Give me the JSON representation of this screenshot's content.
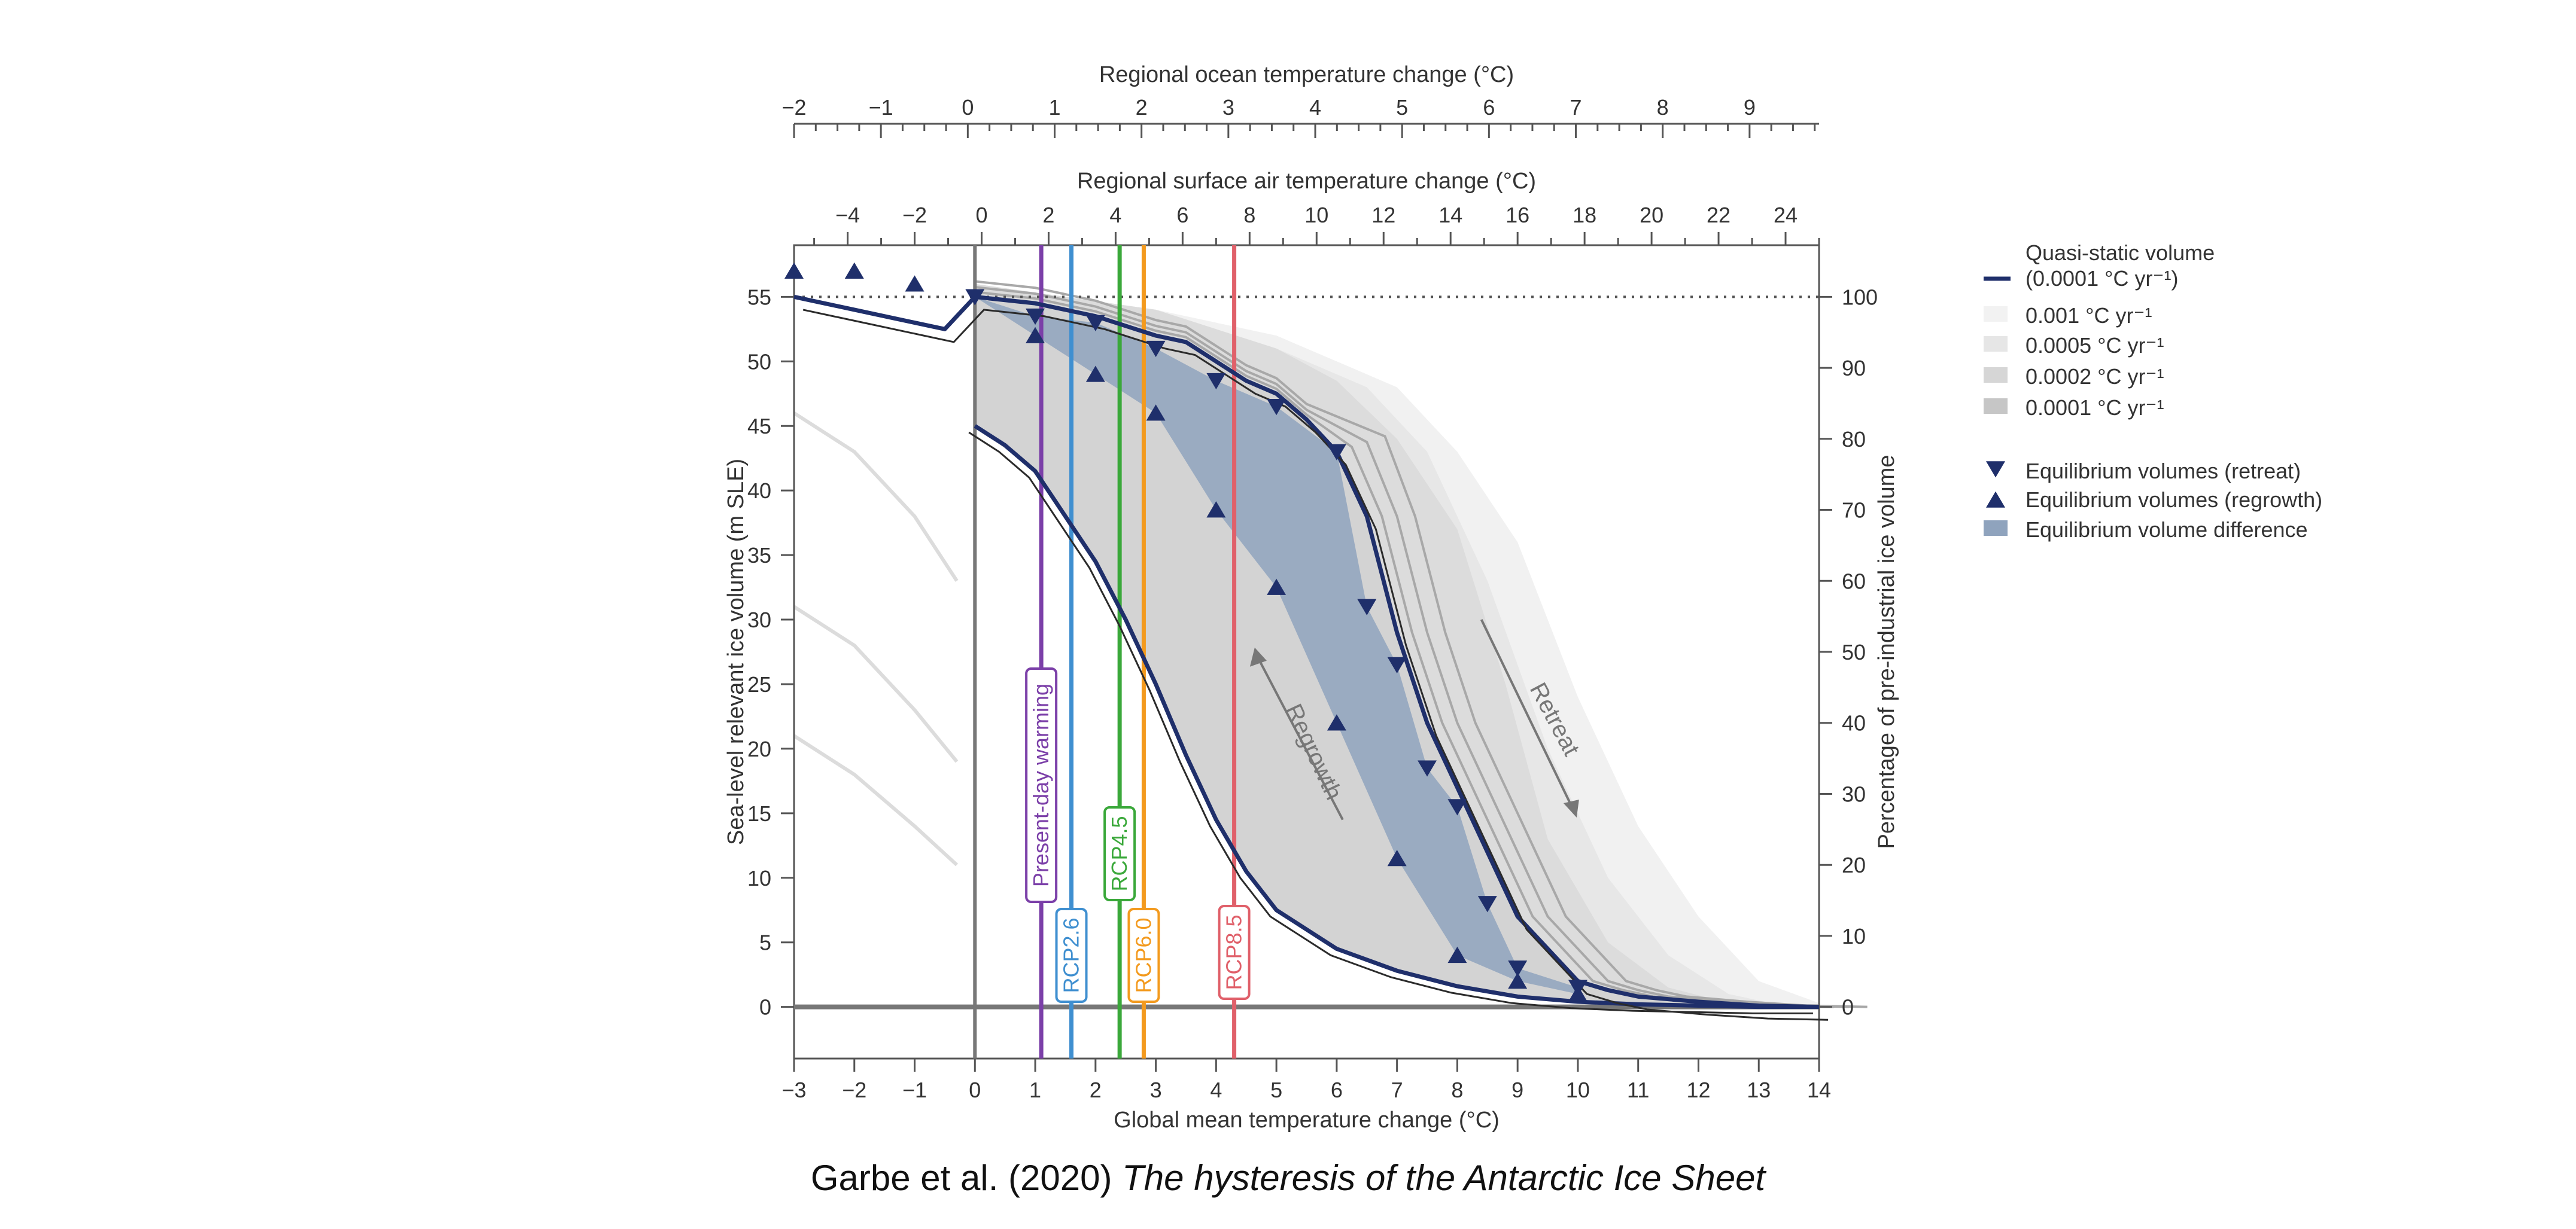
{
  "chart_data": {
    "type": "line",
    "axes": {
      "x_bottom": {
        "label": "Global mean temperature change (°C)",
        "range": [
          -3,
          14
        ],
        "ticks": [
          -3,
          -2,
          -1,
          0,
          1,
          2,
          3,
          4,
          5,
          6,
          7,
          8,
          9,
          10,
          11,
          12,
          13,
          14
        ]
      },
      "x_top_air": {
        "label": "Regional surface air temperature change (°C)",
        "range": [
          -5.6,
          25.0
        ],
        "ticks": [
          -4,
          -2,
          0,
          2,
          4,
          6,
          8,
          10,
          12,
          14,
          16,
          18,
          20,
          22,
          24
        ]
      },
      "x_top_ocean": {
        "label": "Regional ocean temperature change (°C)",
        "range": [
          -2.0,
          9.8
        ],
        "ticks": [
          -2,
          -1,
          0,
          1,
          2,
          3,
          4,
          5,
          6,
          7,
          8,
          9
        ]
      },
      "y_left": {
        "label": "Sea-level relevant ice volume (m SLE)",
        "range": [
          -4,
          59
        ],
        "ticks": [
          0,
          5,
          10,
          15,
          20,
          25,
          30,
          35,
          40,
          45,
          50,
          55
        ]
      },
      "y_right": {
        "label": "Percentage of pre-industrial ice volume",
        "ticks": [
          0,
          10,
          20,
          30,
          40,
          50,
          60,
          70,
          80,
          90,
          100
        ]
      }
    },
    "scenario_lines": [
      {
        "name": "Present-day warming",
        "x": 1.1,
        "color": "#7b3fa8"
      },
      {
        "name": "RCP2.6",
        "x": 1.6,
        "color": "#3f8fd0"
      },
      {
        "name": "RCP4.5",
        "x": 2.4,
        "color": "#3aa83a"
      },
      {
        "name": "RCP6.0",
        "x": 2.8,
        "color": "#f39a1e"
      },
      {
        "name": "RCP8.5",
        "x": 4.3,
        "color": "#e0606a"
      }
    ],
    "annotations": {
      "regrowth": "Regrowth",
      "retreat": "Retreat"
    },
    "series": [
      {
        "name": "Quasi-static volume retreat (0.0001 °C yr⁻¹)",
        "color": "#1f2f6b",
        "x": [
          -3,
          -2,
          -1,
          -0.5,
          0,
          1,
          2,
          3,
          3.5,
          4,
          4.5,
          5,
          5.5,
          6,
          6.5,
          7,
          7.5,
          8,
          8.5,
          9,
          9.5,
          10,
          10.5,
          11,
          12,
          13,
          14
        ],
        "y": [
          55,
          54,
          53,
          52.5,
          55,
          54.5,
          53.5,
          52,
          51.5,
          50,
          48.5,
          47.5,
          45.5,
          43,
          38,
          29,
          22,
          17,
          12,
          7,
          4.5,
          2,
          1.3,
          0.8,
          0.4,
          0.1,
          0
        ]
      },
      {
        "name": "Quasi-static volume regrowth (0.0001 °C yr⁻¹)",
        "color": "#1f2f6b",
        "x": [
          0,
          0.5,
          1,
          1.5,
          2,
          2.5,
          3,
          3.5,
          4,
          4.5,
          5,
          6,
          7,
          8,
          9,
          10,
          11,
          12,
          13,
          14
        ],
        "y": [
          45,
          43.5,
          41.5,
          38,
          34.5,
          30,
          25,
          19.5,
          14.5,
          10.5,
          7.5,
          4.5,
          2.8,
          1.6,
          0.8,
          0.4,
          0.2,
          0.1,
          0,
          0
        ]
      },
      {
        "name": "Equilibrium volumes (retreat)",
        "marker": "triangle-down",
        "color": "#1f2f6b",
        "x": [
          0,
          1,
          2,
          3,
          4,
          5,
          6,
          6.5,
          7,
          7.5,
          8,
          8.5,
          9,
          10
        ],
        "y": [
          55,
          53.5,
          53,
          51,
          48.5,
          46.5,
          43,
          31,
          26.5,
          18.5,
          15.5,
          8,
          3,
          1.5
        ]
      },
      {
        "name": "Equilibrium volumes (regrowth)",
        "marker": "triangle-up",
        "color": "#1f2f6b",
        "x": [
          -3,
          -2,
          -1,
          1,
          2,
          3,
          4,
          5,
          6,
          7,
          8,
          9,
          10
        ],
        "y": [
          57,
          57,
          56,
          52,
          49,
          46,
          38.5,
          32.5,
          22,
          11.5,
          4,
          2,
          1
        ]
      }
    ],
    "legend": {
      "placement": "right",
      "title": "Quasi-static volume",
      "entries": [
        {
          "label": "(0.0001 °C yr⁻¹)",
          "kind": "line",
          "color": "#1f2f6b"
        },
        {
          "label": "0.001 °C yr⁻¹",
          "kind": "swatch",
          "color": "#f2f2f2"
        },
        {
          "label": "0.0005 °C yr⁻¹",
          "kind": "swatch",
          "color": "#e6e6e6"
        },
        {
          "label": "0.0002 °C yr⁻¹",
          "kind": "swatch",
          "color": "#d6d6d6"
        },
        {
          "label": "0.0001 °C yr⁻¹",
          "kind": "swatch",
          "color": "#c6c6c6"
        },
        {
          "label": "Equilibrium volumes (retreat)",
          "kind": "triangle-down",
          "color": "#1f2f6b"
        },
        {
          "label": "Equilibrium volumes (regrowth)",
          "kind": "triangle-up",
          "color": "#1f2f6b"
        },
        {
          "label": "Equilibrium volume difference",
          "kind": "swatch",
          "color": "#8fa3bd"
        }
      ]
    }
  },
  "caption": {
    "authors": "Garbe et al. (2020)",
    "title": "The hysteresis of the Antarctic Ice Sheet"
  }
}
